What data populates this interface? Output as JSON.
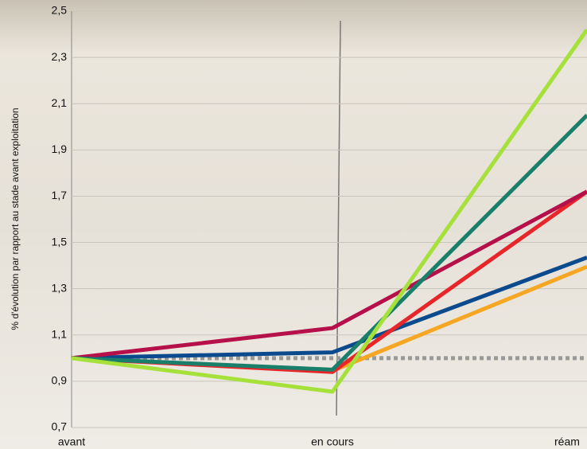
{
  "chart_data": {
    "type": "line",
    "y_label": "% d'évolution par rapport au stade avant exploitation",
    "categories": [
      "avant",
      "en cours",
      "réam"
    ],
    "series": [
      {
        "color": "#999999",
        "dashed": true,
        "values": [
          1,
          1,
          1
        ]
      },
      {
        "color": "#f5a623",
        "values": [
          1,
          0.945,
          1.395
        ]
      },
      {
        "color": "#0b4a8c",
        "values": [
          1,
          1.025,
          1.435
        ]
      },
      {
        "color": "#e8262a",
        "values": [
          1,
          0.94,
          1.72
        ]
      },
      {
        "color": "#b5104a",
        "values": [
          1,
          1.13,
          1.72
        ]
      },
      {
        "color": "#1a7f6a",
        "values": [
          1,
          0.95,
          2.05
        ]
      },
      {
        "color": "#a6e03a",
        "values": [
          1,
          0.855,
          2.42
        ]
      }
    ],
    "ylim": [
      0.7,
      2.5
    ],
    "yticks": [
      {
        "value": 0.7,
        "label": "0,7"
      },
      {
        "value": 0.9,
        "label": "0,9"
      },
      {
        "value": 1.1,
        "label": "1,1"
      },
      {
        "value": 1.3,
        "label": "1,3"
      },
      {
        "value": 1.5,
        "label": "1,5"
      },
      {
        "value": 1.7,
        "label": "1,7"
      },
      {
        "value": 1.9,
        "label": "1,9"
      },
      {
        "value": 2.1,
        "label": "2,1"
      },
      {
        "value": 2.3,
        "label": "2,3"
      },
      {
        "value": 2.5,
        "label": "2,5"
      }
    ],
    "grid": true
  }
}
